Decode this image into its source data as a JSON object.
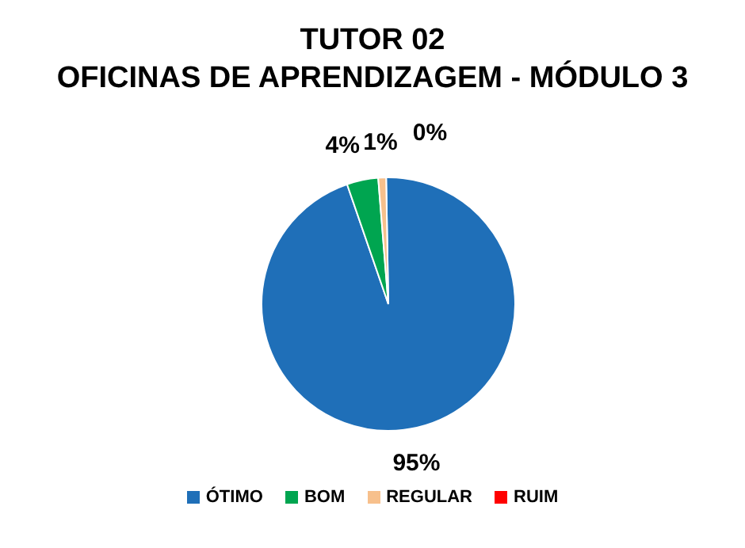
{
  "chart_data": {
    "type": "pie",
    "title": "TUTOR 02\nOFICINAS DE APRENDIZAGEM - MÓDULO 3",
    "categories": [
      "ÓTIMO",
      "BOM",
      "REGULAR",
      "RUIM"
    ],
    "values": [
      95,
      4,
      1,
      0
    ],
    "colors": [
      "#1f6fb8",
      "#00a550",
      "#f7c08c",
      "#ff0000"
    ],
    "value_labels": [
      "95%",
      "4%",
      "1%",
      "0%"
    ],
    "legend": "bottom"
  }
}
